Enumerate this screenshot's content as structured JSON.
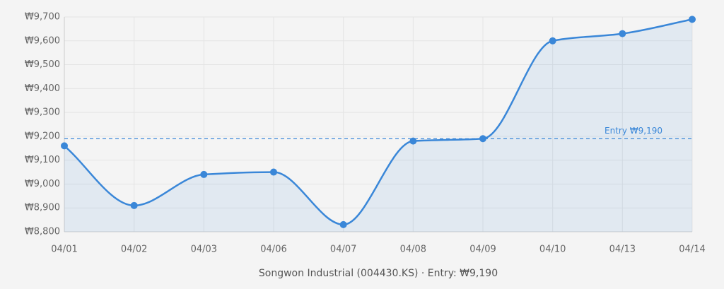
{
  "chart_data": {
    "type": "line",
    "categories": [
      "04/01",
      "04/02",
      "04/03",
      "04/06",
      "04/07",
      "04/08",
      "04/09",
      "04/10",
      "04/13",
      "04/14"
    ],
    "series": [
      {
        "name": "Songwon Industrial (004430.KS)",
        "color": "#3a87d8",
        "values": [
          9160,
          8910,
          9040,
          9050,
          8830,
          9180,
          9190,
          9600,
          9630,
          9690
        ]
      }
    ],
    "ylim": [
      8800,
      9700
    ],
    "yticks": [
      {
        "value": 8800,
        "label": "₩8,800"
      },
      {
        "value": 8900,
        "label": "₩8,900"
      },
      {
        "value": 9000,
        "label": "₩9,000"
      },
      {
        "value": 9100,
        "label": "₩9,100"
      },
      {
        "value": 9200,
        "label": "₩9,200"
      },
      {
        "value": 9300,
        "label": "₩9,300"
      },
      {
        "value": 9400,
        "label": "₩9,400"
      },
      {
        "value": 9500,
        "label": "₩9,500"
      },
      {
        "value": 9600,
        "label": "₩9,600"
      },
      {
        "value": 9700,
        "label": "₩9,700"
      }
    ],
    "grid": true,
    "reference_line": {
      "value": 9190,
      "label": "Entry ₩9,190",
      "color": "#3a87d8"
    },
    "x_label": "Songwon Industrial (004430.KS) · Entry: ₩9,190"
  }
}
